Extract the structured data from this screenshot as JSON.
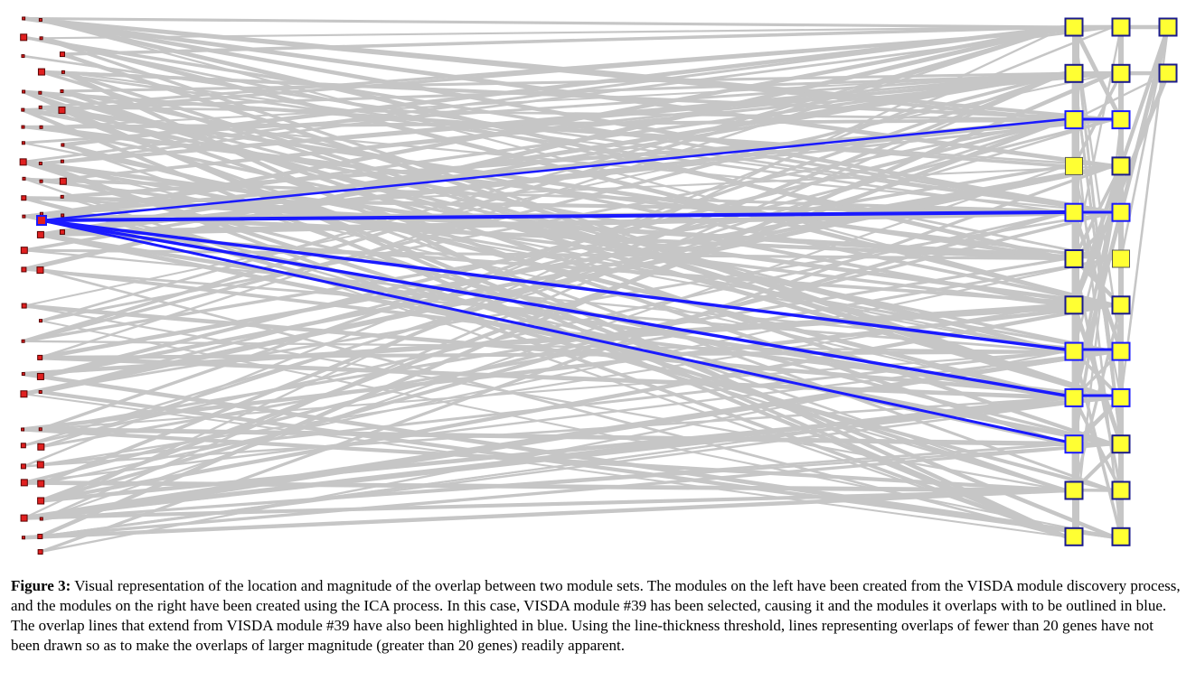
{
  "figure": {
    "colors": {
      "edge": "#c6c6c6",
      "highlight": "#1a1aff",
      "visda_fill": "#e02020",
      "ica_fill": "#ffff33",
      "ica_outline": "#1a1a8c",
      "visda_outline": "#5a0000"
    },
    "left_nodes_description_rows": 31,
    "selected_visda_module": 39,
    "threshold_genes": 20
  },
  "caption": {
    "label": "Figure 3:",
    "text": " Visual representation of the location and magnitude of the overlap between two module sets. The modules on the left have been created from the VISDA module discovery process, and the modules on the right have been created using the ICA process. In this case, VISDA module #39 has been selected, causing it and the modules it overlaps with to be outlined in blue. The overlap lines that extend from VISDA module #39 have also been highlighted in blue. Using the line-thickness threshold, lines representing overlaps of fewer than 20 genes have not been drawn so as to make the overlaps of larger magnitude (greater than 20 genes) readily apparent."
  }
}
